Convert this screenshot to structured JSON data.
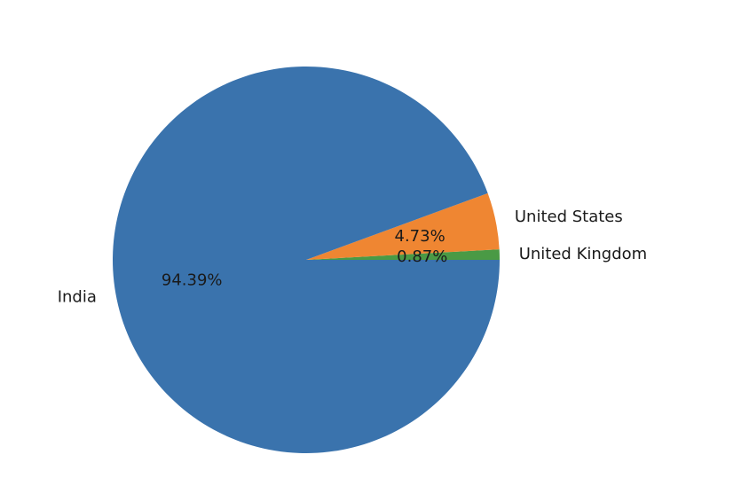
{
  "chart_data": {
    "type": "pie",
    "title": "",
    "start_angle_deg": 0,
    "direction": "counterclockwise",
    "slices": [
      {
        "label": "United Kingdom",
        "value": 0.87,
        "display": "0.87%",
        "color": "#4a9a45"
      },
      {
        "label": "United States",
        "value": 4.73,
        "display": "4.73%",
        "color": "#ef8632"
      },
      {
        "label": "India",
        "value": 94.39,
        "display": "94.39%",
        "color": "#3a73ad"
      }
    ]
  }
}
